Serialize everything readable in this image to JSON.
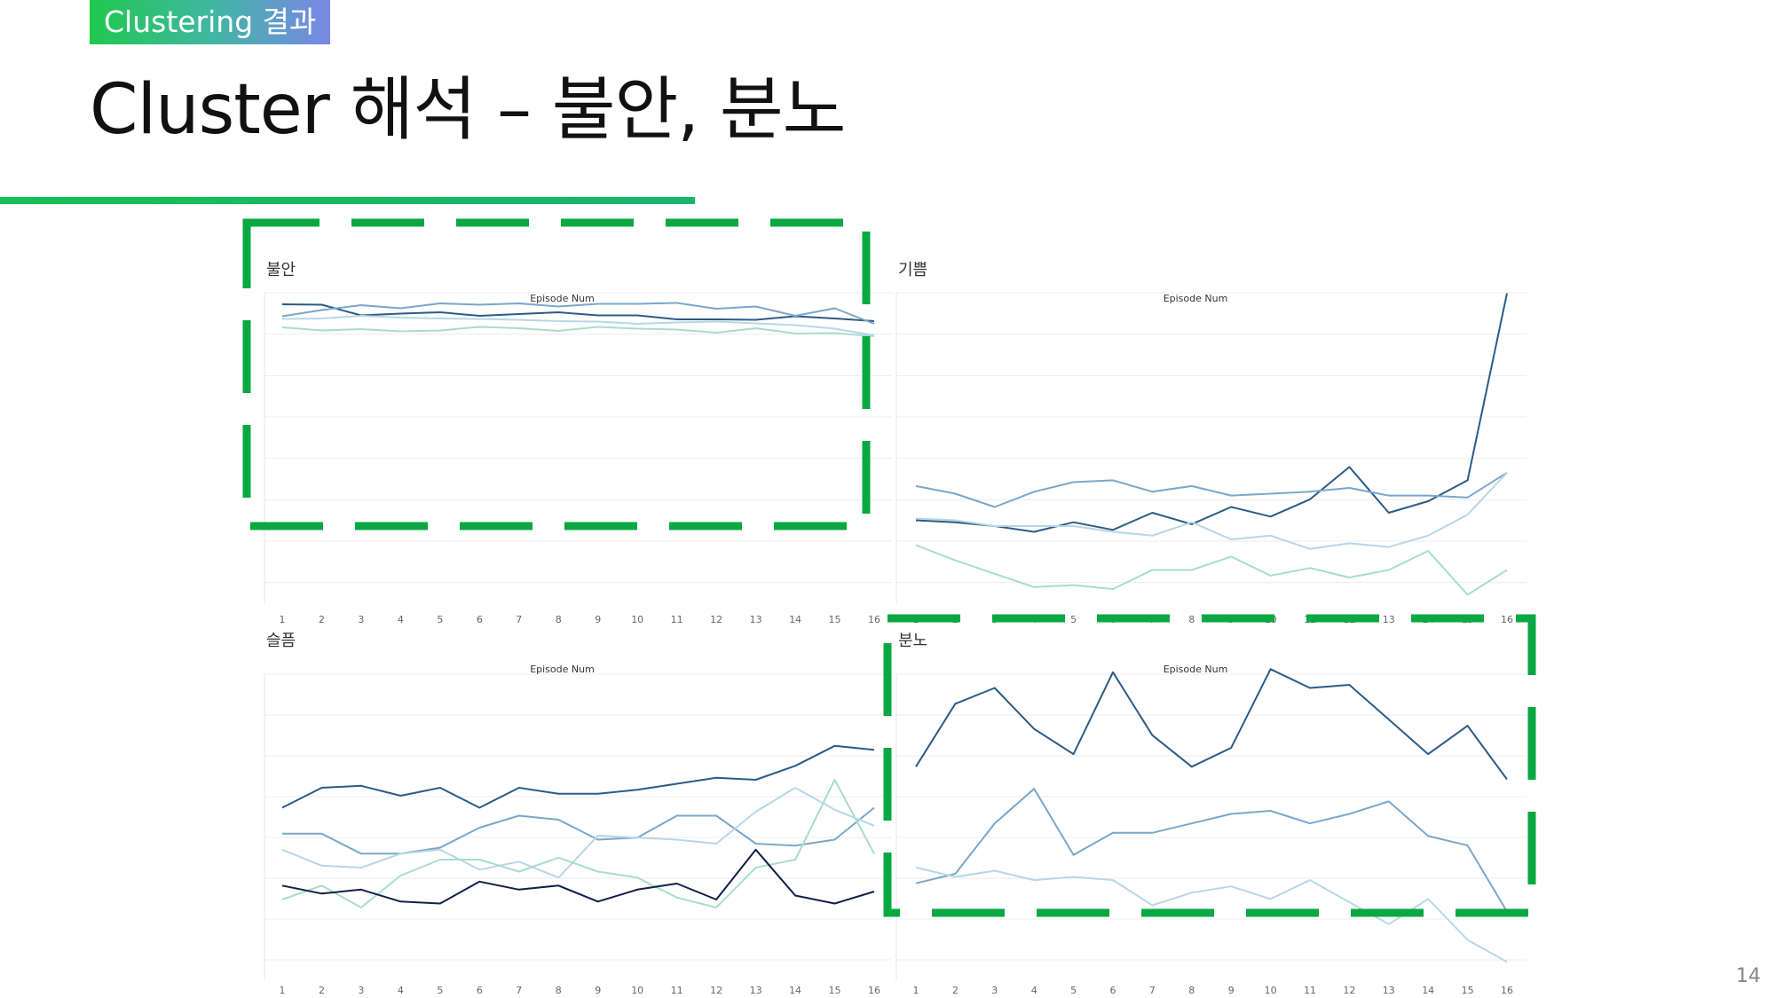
{
  "header": {
    "tag": "Clustering 결과",
    "title": "Cluster 해석 – 불안, 분노"
  },
  "page_number": "14",
  "colors": {
    "accent_green": "#0aa843",
    "series": [
      "#2c5b86",
      "#7aa7cc",
      "#b7d7e8",
      "#a8dccf",
      "#0f1f48"
    ]
  },
  "chart_data": [
    {
      "type": "line",
      "title": "불안",
      "xlabel": "Episode Num",
      "ylabel": "",
      "x": [
        1,
        2,
        3,
        4,
        5,
        6,
        7,
        8,
        9,
        10,
        11,
        12,
        13,
        14,
        15,
        16
      ],
      "ylim": [
        0,
        10
      ],
      "highlighted": true,
      "series": [
        {
          "values": [
            7.2,
            7.15,
            5.95,
            6.15,
            6.3,
            5.9,
            6.1,
            6.3,
            5.95,
            5.95,
            5.5,
            5.5,
            5.45,
            5.85,
            5.6,
            5.3
          ]
        },
        {
          "values": [
            5.85,
            6.55,
            7.1,
            6.75,
            7.3,
            7.15,
            7.3,
            6.95,
            7.25,
            7.25,
            7.35,
            6.7,
            6.95,
            5.9,
            6.75,
            5.0
          ]
        },
        {
          "values": [
            5.55,
            5.6,
            5.9,
            5.7,
            5.6,
            5.55,
            5.45,
            5.3,
            5.25,
            5.0,
            5.15,
            5.25,
            5.05,
            4.85,
            4.45,
            3.7
          ]
        },
        {
          "values": [
            4.6,
            4.25,
            4.4,
            4.15,
            4.25,
            4.65,
            4.5,
            4.2,
            4.65,
            4.45,
            4.35,
            4.0,
            4.5,
            3.9,
            3.95,
            3.6
          ]
        }
      ]
    },
    {
      "type": "line",
      "title": "기쁨",
      "xlabel": "Episode Num",
      "ylabel": "",
      "x": [
        1,
        2,
        3,
        4,
        5,
        6,
        7,
        8,
        9,
        10,
        11,
        12,
        13,
        14,
        15,
        16
      ],
      "ylim": [
        0,
        10
      ],
      "highlighted": false,
      "series": [
        {
          "values": [
            4.15,
            4.1,
            4.0,
            3.85,
            4.1,
            3.9,
            4.35,
            4.05,
            4.5,
            4.25,
            4.7,
            5.55,
            4.35,
            4.65,
            5.2,
            10.1
          ]
        },
        {
          "values": [
            5.05,
            4.85,
            4.5,
            4.9,
            5.15,
            5.2,
            4.9,
            5.05,
            4.8,
            4.85,
            4.9,
            5.0,
            4.8,
            4.8,
            4.75,
            5.4
          ]
        },
        {
          "values": [
            4.2,
            4.15,
            4.0,
            4.0,
            4.0,
            3.85,
            3.75,
            4.1,
            3.65,
            3.75,
            3.4,
            3.55,
            3.45,
            3.75,
            4.3,
            5.4
          ]
        },
        {
          "values": [
            3.5,
            3.1,
            2.75,
            2.4,
            2.45,
            2.35,
            2.85,
            2.85,
            3.2,
            2.7,
            2.9,
            2.65,
            2.85,
            3.35,
            2.2,
            2.85
          ]
        }
      ]
    },
    {
      "type": "line",
      "title": "슬픔",
      "xlabel": "Episode Num",
      "ylabel": "",
      "x": [
        1,
        2,
        3,
        4,
        5,
        6,
        7,
        8,
        9,
        10,
        11,
        12,
        13,
        14,
        15,
        16
      ],
      "ylim": [
        0,
        10
      ],
      "highlighted": false,
      "series": [
        {
          "values": [
            7.1,
            7.6,
            7.65,
            7.4,
            7.6,
            7.1,
            7.6,
            7.45,
            7.45,
            7.55,
            7.7,
            7.85,
            7.8,
            8.15,
            8.65,
            8.55
          ]
        },
        {
          "values": [
            6.45,
            6.45,
            5.95,
            5.95,
            6.1,
            6.6,
            6.9,
            6.8,
            6.3,
            6.35,
            6.9,
            6.9,
            6.2,
            6.15,
            6.3,
            7.1
          ]
        },
        {
          "values": [
            6.05,
            5.65,
            5.6,
            5.95,
            6.05,
            5.55,
            5.75,
            5.35,
            6.4,
            6.35,
            6.3,
            6.2,
            7.0,
            7.6,
            7.05,
            6.65
          ]
        },
        {
          "values": [
            4.8,
            5.15,
            4.6,
            5.4,
            5.8,
            5.8,
            5.5,
            5.85,
            5.5,
            5.35,
            4.85,
            4.6,
            5.6,
            5.8,
            7.8,
            5.95
          ]
        },
        {
          "values": [
            5.15,
            4.95,
            5.05,
            4.75,
            4.7,
            5.25,
            5.05,
            5.15,
            4.75,
            5.05,
            5.2,
            4.8,
            6.05,
            4.9,
            4.7,
            5.0
          ]
        }
      ]
    },
    {
      "type": "line",
      "title": "분노",
      "xlabel": "Episode Num",
      "ylabel": "",
      "x": [
        1,
        2,
        3,
        4,
        5,
        6,
        7,
        8,
        9,
        10,
        11,
        12,
        13,
        14,
        15,
        16
      ],
      "ylim": [
        0,
        10
      ],
      "highlighted": true,
      "series": [
        {
          "values": [
            6.7,
            7.7,
            7.95,
            7.3,
            6.9,
            8.2,
            7.2,
            6.7,
            7.0,
            8.25,
            7.95,
            8.0,
            7.45,
            6.9,
            7.35,
            6.5
          ]
        },
        {
          "values": [
            4.85,
            5.0,
            5.8,
            6.35,
            5.3,
            5.65,
            5.65,
            5.8,
            5.95,
            6.0,
            5.8,
            5.95,
            6.15,
            5.6,
            5.45,
            4.4
          ]
        },
        {
          "values": [
            5.1,
            4.95,
            5.05,
            4.9,
            4.95,
            4.9,
            4.5,
            4.7,
            4.8,
            4.6,
            4.9,
            4.55,
            4.2,
            4.6,
            3.95,
            3.6
          ]
        }
      ]
    }
  ]
}
